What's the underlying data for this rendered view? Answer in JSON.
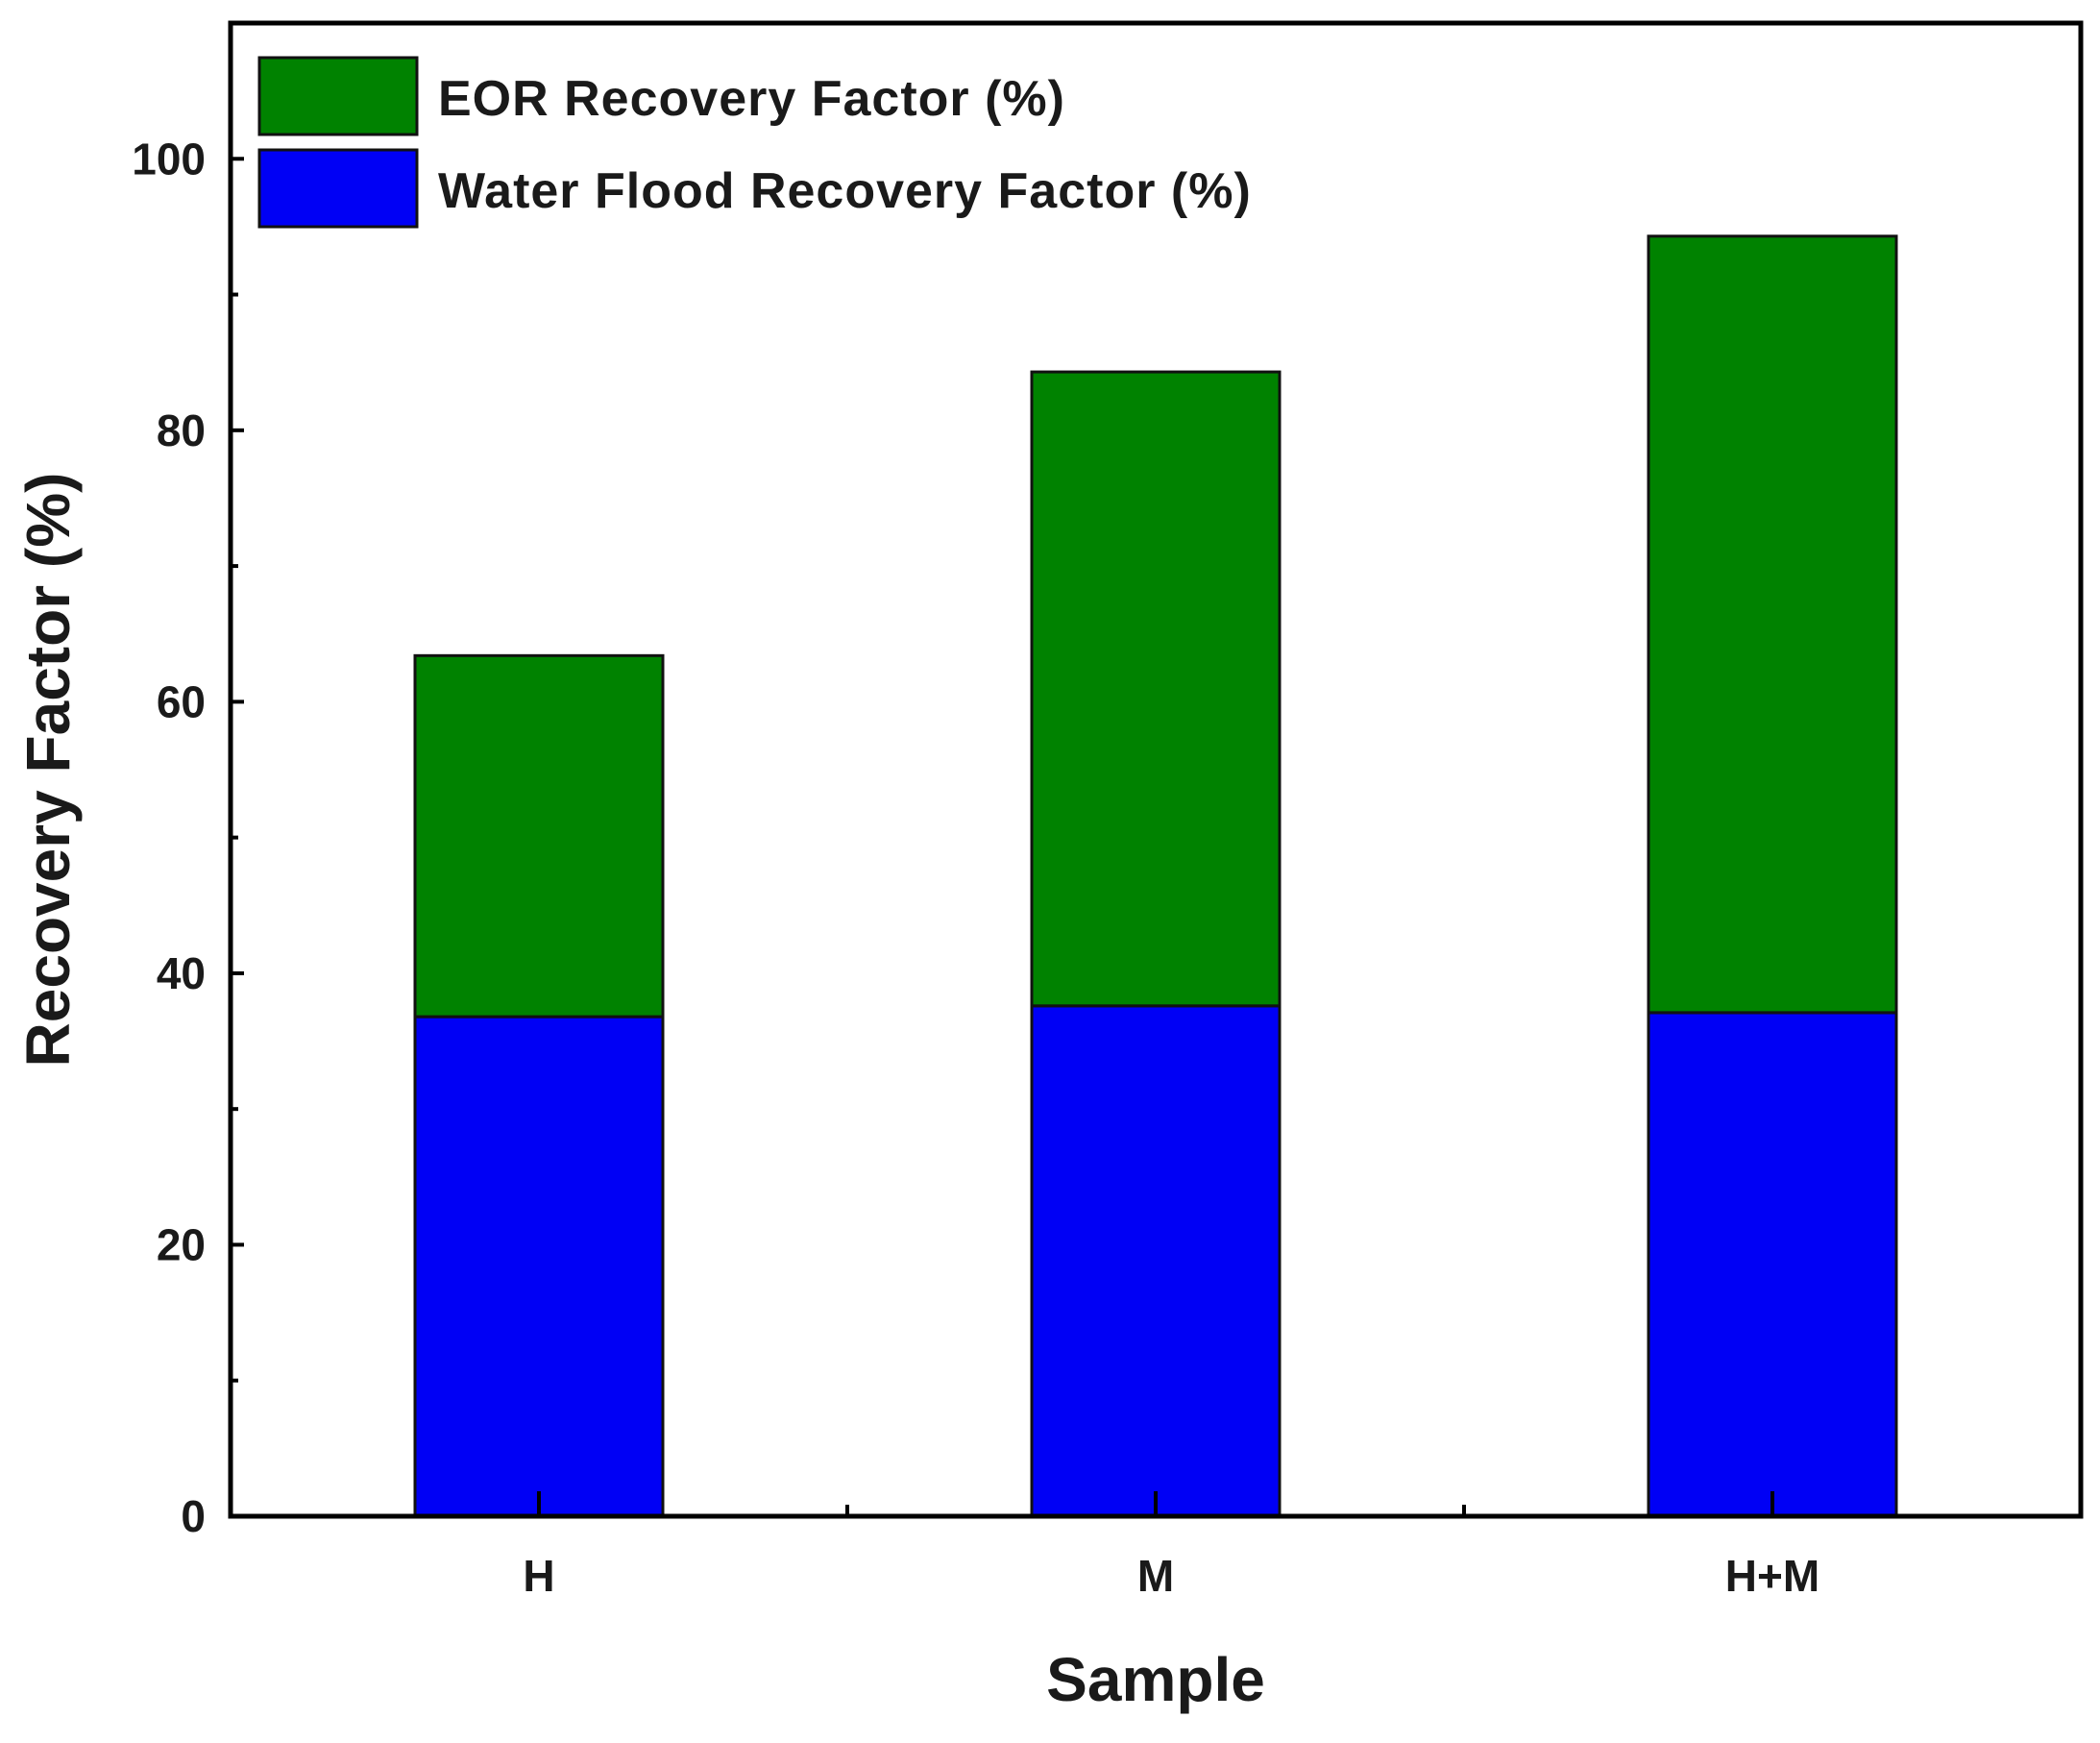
{
  "chart_data": {
    "type": "bar",
    "stacked": true,
    "categories": [
      "H",
      "M",
      "H+M"
    ],
    "series": [
      {
        "name": "Water Flood Recovery Factor (%)",
        "values": [
          36.8,
          37.6,
          37.1
        ],
        "color": "#0000f5"
      },
      {
        "name": "EOR Recovery Factor (%)",
        "values": [
          26.6,
          46.7,
          57.2
        ],
        "color": "#008200"
      }
    ],
    "xlabel": "Sample",
    "ylabel": "Recovery Factor (%)",
    "ylim": [
      0,
      110
    ],
    "yticks": [
      0,
      20,
      40,
      60,
      80,
      100
    ],
    "grid": false,
    "legend_position": "top-left",
    "legend_order": [
      "EOR Recovery Factor (%)",
      "Water Flood Recovery Factor (%)"
    ]
  }
}
